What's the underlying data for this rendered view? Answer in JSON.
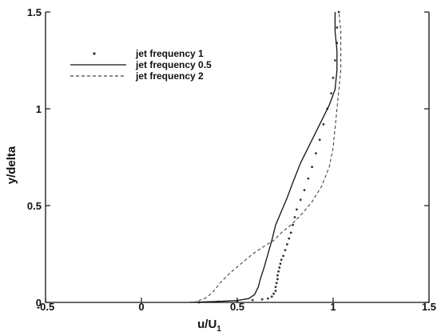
{
  "chart_data": {
    "type": "line",
    "xlabel": "u/U",
    "xlabel_sub": "1",
    "ylabel": "y/delta",
    "xlim": [
      -0.5,
      1.5
    ],
    "ylim": [
      0,
      1.5
    ],
    "x_ticks": [
      "-0.5",
      "0",
      "0.5",
      "1",
      "1.5"
    ],
    "y_ticks": [
      "0",
      "0.5",
      "1",
      "1.5"
    ],
    "grid": false,
    "legend_position": "top-left",
    "series": [
      {
        "name": "jet frequency 1",
        "style": "markers",
        "color": "#333333",
        "points": [
          [
            0.3,
            0.0
          ],
          [
            0.4,
            0.004
          ],
          [
            0.5,
            0.008
          ],
          [
            0.58,
            0.012
          ],
          [
            0.63,
            0.016
          ],
          [
            0.66,
            0.02
          ],
          [
            0.68,
            0.03
          ],
          [
            0.69,
            0.045
          ],
          [
            0.7,
            0.06
          ],
          [
            0.7,
            0.08
          ],
          [
            0.705,
            0.1
          ],
          [
            0.71,
            0.12
          ],
          [
            0.71,
            0.14
          ],
          [
            0.715,
            0.16
          ],
          [
            0.72,
            0.18
          ],
          [
            0.725,
            0.2
          ],
          [
            0.73,
            0.22
          ],
          [
            0.74,
            0.24
          ],
          [
            0.75,
            0.27
          ],
          [
            0.76,
            0.3
          ],
          [
            0.77,
            0.33
          ],
          [
            0.78,
            0.36
          ],
          [
            0.79,
            0.4
          ],
          [
            0.8,
            0.44
          ],
          [
            0.81,
            0.48
          ],
          [
            0.83,
            0.53
          ],
          [
            0.85,
            0.58
          ],
          [
            0.87,
            0.64
          ],
          [
            0.89,
            0.7
          ],
          [
            0.91,
            0.77
          ],
          [
            0.93,
            0.84
          ],
          [
            0.95,
            0.92
          ],
          [
            0.97,
            1.0
          ],
          [
            0.99,
            1.08
          ],
          [
            1.0,
            1.16
          ],
          [
            1.01,
            1.25
          ],
          [
            1.02,
            1.34
          ],
          [
            1.02,
            1.42
          ],
          [
            1.03,
            1.5
          ]
        ]
      },
      {
        "name": "jet frequency 0.5",
        "style": "solid",
        "color": "#111111",
        "points": [
          [
            0.25,
            0.0
          ],
          [
            0.4,
            0.005
          ],
          [
            0.5,
            0.01
          ],
          [
            0.56,
            0.02
          ],
          [
            0.59,
            0.04
          ],
          [
            0.61,
            0.08
          ],
          [
            0.62,
            0.12
          ],
          [
            0.64,
            0.18
          ],
          [
            0.66,
            0.25
          ],
          [
            0.68,
            0.32
          ],
          [
            0.7,
            0.4
          ],
          [
            0.73,
            0.47
          ],
          [
            0.76,
            0.54
          ],
          [
            0.79,
            0.62
          ],
          [
            0.83,
            0.72
          ],
          [
            0.88,
            0.82
          ],
          [
            0.93,
            0.92
          ],
          [
            0.98,
            1.02
          ],
          [
            1.01,
            1.1
          ],
          [
            1.02,
            1.2
          ],
          [
            1.02,
            1.3
          ],
          [
            1.01,
            1.4
          ],
          [
            1.01,
            1.5
          ]
        ]
      },
      {
        "name": "jet frequency 2",
        "style": "dashed",
        "color": "#444444",
        "points": [
          [
            0.27,
            0.0
          ],
          [
            0.33,
            0.02
          ],
          [
            0.37,
            0.05
          ],
          [
            0.41,
            0.1
          ],
          [
            0.46,
            0.15
          ],
          [
            0.52,
            0.2
          ],
          [
            0.58,
            0.25
          ],
          [
            0.64,
            0.29
          ],
          [
            0.69,
            0.32
          ],
          [
            0.73,
            0.36
          ],
          [
            0.78,
            0.4
          ],
          [
            0.84,
            0.46
          ],
          [
            0.89,
            0.52
          ],
          [
            0.94,
            0.6
          ],
          [
            0.98,
            0.7
          ],
          [
            1.0,
            0.8
          ],
          [
            1.01,
            0.9
          ],
          [
            1.02,
            1.0
          ],
          [
            1.03,
            1.1
          ],
          [
            1.04,
            1.2
          ],
          [
            1.04,
            1.3
          ],
          [
            1.04,
            1.4
          ],
          [
            1.03,
            1.5
          ]
        ]
      }
    ]
  }
}
